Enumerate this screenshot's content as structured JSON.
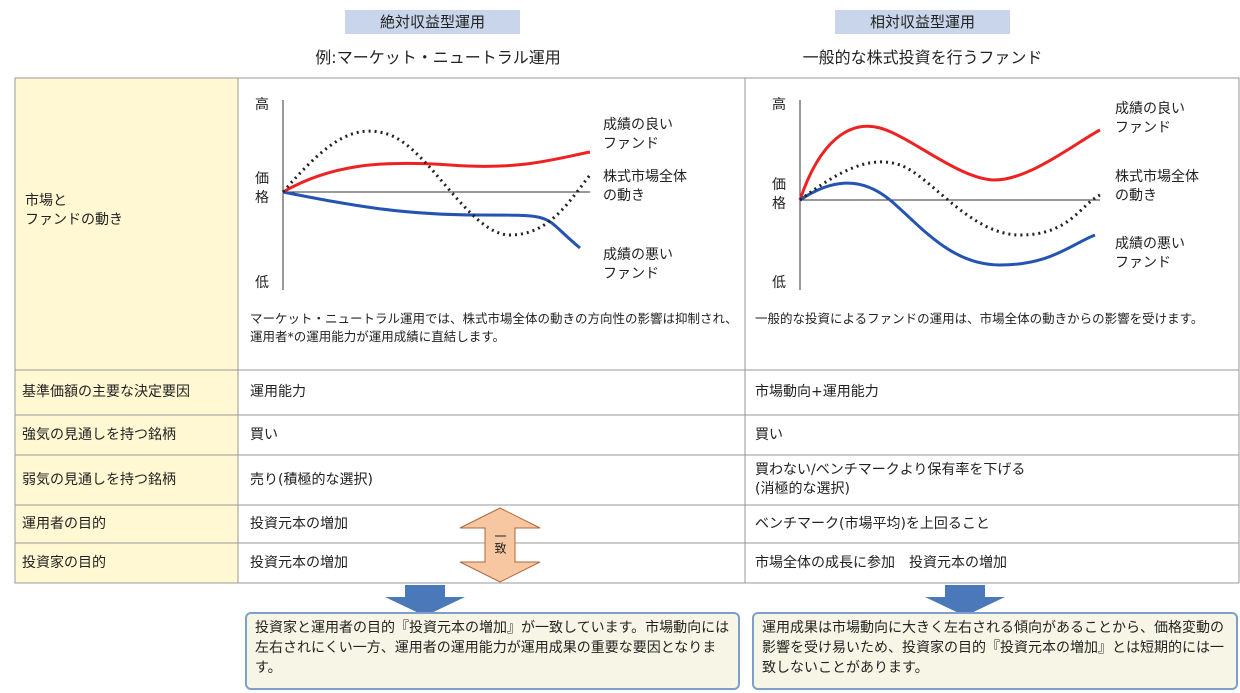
{
  "columns": [
    {
      "title": "絶対収益型運用",
      "subtitle": "例:マーケット・ニュートラル運用",
      "chart": {
        "high": "高",
        "price": "価\n格",
        "low": "低",
        "good": "成績の良い\nファンド",
        "market": "株式市場全体\nの動き",
        "bad": "成績の悪い\nファンド"
      },
      "caption": "マーケット・ニュートラル運用では、株式市場全体の動きの方向性の影響は抑制され、運用者*の運用能力が運用成績に直結します。",
      "conclusion": "投資家と運用者の目的『投資元本の増加』が一致しています。市場動向には左右されにくい一方、運用者の運用能力が運用成果の重要な要因となります。"
    },
    {
      "title": "相対収益型運用",
      "subtitle": "一般的な株式投資を行うファンド",
      "chart": {
        "high": "高",
        "price": "価\n格",
        "low": "低",
        "good": "成績の良い\nファンド",
        "market": "株式市場全体\nの動き",
        "bad": "成績の悪い\nファンド"
      },
      "caption": "一般的な投資によるファンドの運用は、市場全体の動きからの影響を受けます。",
      "conclusion": "運用成果は市場動向に大きく左右される傾向があることから、価格変動の影響を受け易いため、投資家の目的『投資元本の増加』とは短期的には一致しないことがあります。"
    }
  ],
  "first_row_label": "市場と\nファンドの動き",
  "rows": [
    {
      "label": "基準価額の主要な決定要因",
      "cells": [
        "運用能力",
        "市場動向+運用能力"
      ]
    },
    {
      "label": "強気の見通しを持つ銘柄",
      "cells": [
        "買い",
        "買い"
      ]
    },
    {
      "label": "弱気の見通しを持つ銘柄",
      "cells": [
        "売り(積極的な選択)",
        "買わない/ベンチマークより保有率を下げる\n(消極的な選択)"
      ]
    },
    {
      "label": "運用者の目的",
      "cells": [
        "投資元本の増加",
        "ベンチマーク(市場平均)を上回ること"
      ]
    },
    {
      "label": "投資家の目的",
      "cells": [
        "投資元本の増加",
        "市場全体の成長に参加　投資元本の増加"
      ]
    }
  ],
  "agreement": "一致"
}
